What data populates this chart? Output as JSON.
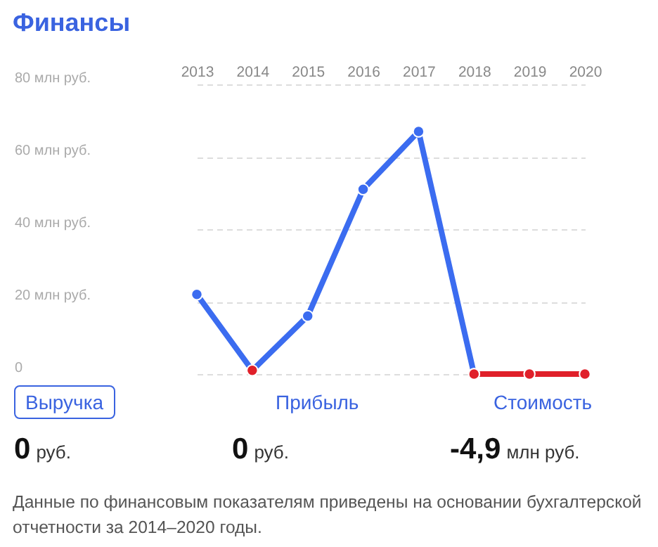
{
  "chart_data": [
    {
      "type": "line",
      "title": "Финансы",
      "categories": [
        "2013",
        "2014",
        "2015",
        "2016",
        "2017",
        "2018",
        "2019",
        "2020"
      ],
      "series": [
        {
          "color": "#3b6cf0",
          "colors": [
            "#3b6cf0",
            "#e0202a",
            "#3b6cf0",
            "#3b6cf0",
            "#3b6cf0",
            "#e0202a",
            null,
            null
          ],
          "values": [
            22,
            1,
            16,
            51,
            67,
            0,
            null,
            null
          ]
        },
        {
          "color": "#e0202a",
          "values": [
            null,
            null,
            null,
            null,
            null,
            0,
            0,
            0
          ]
        }
      ],
      "ylim": [
        0,
        80
      ],
      "yticks": [
        0,
        {
          "value": 20,
          "label": "20 млн руб."
        },
        {
          "value": 40,
          "label": "40 млн руб."
        },
        {
          "value": 60,
          "label": "60 млн руб."
        },
        {
          "value": 80,
          "label": "80 млн руб."
        }
      ],
      "grid": "y",
      "marker": "circle",
      "line_style": "solid"
    },
    {
      "type": "other",
      "categories": [
        "Выручка",
        "Прибыль",
        "Стоимость"
      ],
      "value_labels": [
        "0 руб.",
        "0 руб.",
        "-4,9 млн руб."
      ],
      "annotations": [
        "Данные по финансовым показателям приведены на основании бухгалтерской отчетности за 2014–2020 годы."
      ]
    }
  ]
}
